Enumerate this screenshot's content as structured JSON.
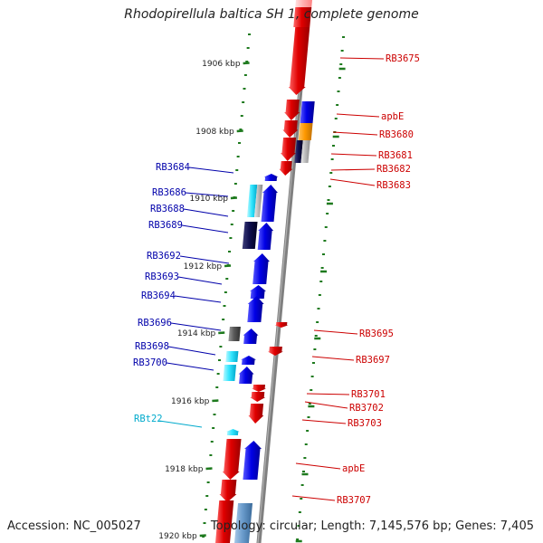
{
  "title": "Rhodopirellula baltica SH 1, complete genome",
  "accession": "Accession: NC_005027",
  "stats": "Topology: circular; Length: 7,145,576 bp; Genes: 7,405",
  "colors": {
    "backbone": "#808080",
    "tick": "#1e7a1e",
    "forward_gene": "#0000ee",
    "reverse_gene": "#ee0000",
    "rna_gene": "#00bbdd",
    "label_forward": "#0000aa",
    "label_reverse": "#cc0000",
    "label_rna": "#00aacc"
  },
  "axis_ticks": [
    {
      "label": "1906 kbp"
    },
    {
      "label": "1908 kbp"
    },
    {
      "label": "1910 kbp"
    },
    {
      "label": "1912 kbp"
    },
    {
      "label": "1914 kbp"
    },
    {
      "label": "1916 kbp"
    },
    {
      "label": "1918 kbp"
    },
    {
      "label": "1920 kbp"
    }
  ],
  "gene_labels_forward": [
    "RB3684",
    "RB3686",
    "RB3688",
    "RB3689",
    "RB3692",
    "RB3693",
    "RB3694",
    "RB3696",
    "RB3698",
    "RB3700"
  ],
  "gene_labels_reverse": [
    "RB3675",
    "apbE",
    "RB3680",
    "RB3681",
    "RB3682",
    "RB3683",
    "RB3695",
    "RB3697",
    "RB3701",
    "RB3702",
    "RB3703",
    "apbE",
    "RB3707"
  ],
  "gene_labels_rna": [
    "RBt22"
  ]
}
